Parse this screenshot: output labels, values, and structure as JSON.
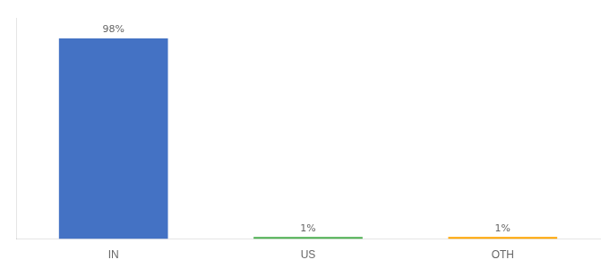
{
  "chart_data": {
    "type": "bar",
    "categories": [
      "IN",
      "US",
      "OTH"
    ],
    "values": [
      98,
      1,
      1
    ],
    "value_labels": [
      "98%",
      "1%",
      "1%"
    ],
    "colors": [
      "#4472c4",
      "#4caf50",
      "#ffa500"
    ],
    "ylim": [
      0,
      108
    ],
    "grid": false,
    "data_labels": true,
    "tick_labels": "x"
  }
}
